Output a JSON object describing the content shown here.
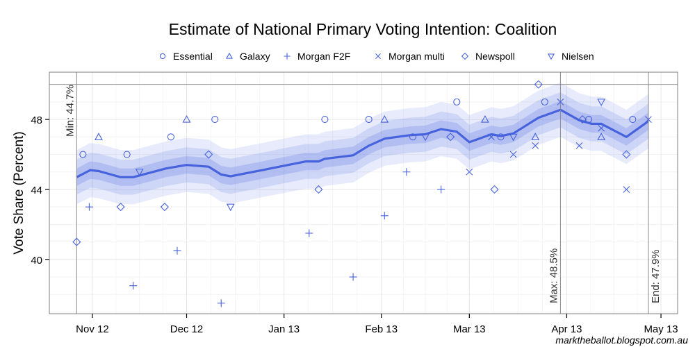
{
  "chart_data": {
    "type": "line",
    "title": "Estimate of National Primary Voting Intention: Coalition",
    "xlabel": "",
    "ylabel": "Vote Share (Percent)",
    "x_units": "days since 1 Nov 2012",
    "xlim": [
      -13.7,
      186.3
    ],
    "ylim": [
      36.9,
      50.7
    ],
    "grid": true,
    "legend_position": "top",
    "x_ticks": [
      {
        "value": 0,
        "label": "Nov 12"
      },
      {
        "value": 30,
        "label": "Dec 12"
      },
      {
        "value": 61,
        "label": "Jan 13"
      },
      {
        "value": 92,
        "label": "Feb 13"
      },
      {
        "value": 120,
        "label": "Mar 13"
      },
      {
        "value": 151,
        "label": "Apr 13"
      },
      {
        "value": 181,
        "label": "May 13"
      }
    ],
    "y_ticks": [
      {
        "value": 40,
        "label": "40"
      },
      {
        "value": 44,
        "label": "44"
      },
      {
        "value": 48,
        "label": "48"
      }
    ],
    "reference_hline": 50,
    "annotations": [
      {
        "x": -5,
        "label": "Min: 44.7%",
        "text_side": "left",
        "text_pos": "top"
      },
      {
        "x": 149,
        "label": "Max: 48.5%",
        "text_side": "left",
        "text_pos": "bottom"
      },
      {
        "x": 177,
        "label": "End: 47.9%",
        "text_side": "right",
        "text_pos": "bottom"
      }
    ],
    "trend": {
      "name": "Aggregate estimate",
      "color": "#4762dd",
      "band_color": "#6a80e6",
      "band_half_widths": [
        0.5,
        1.0,
        1.55
      ],
      "x": [
        -5,
        -0.7,
        2,
        9,
        13,
        23.5,
        30,
        37,
        41,
        44,
        54,
        68,
        72,
        74,
        83,
        88,
        93,
        101,
        106,
        111,
        116,
        120,
        127,
        130,
        134,
        142,
        149,
        155,
        159,
        162,
        170,
        177
      ],
      "y": [
        44.7,
        45.1,
        45.05,
        44.7,
        44.7,
        45.2,
        45.4,
        45.3,
        44.85,
        44.75,
        45.1,
        45.6,
        45.6,
        45.75,
        45.95,
        46.5,
        46.9,
        47.1,
        47.15,
        47.45,
        47.3,
        46.7,
        47.15,
        47.05,
        47.2,
        48.1,
        48.55,
        47.95,
        47.75,
        47.75,
        47.0,
        47.9
      ]
    },
    "series": [
      {
        "name": "Essential",
        "shape": "circle",
        "points": [
          [
            -3,
            46
          ],
          [
            11,
            46
          ],
          [
            25,
            47
          ],
          [
            39,
            48
          ],
          [
            74,
            48
          ],
          [
            88,
            48
          ],
          [
            102,
            47
          ],
          [
            116,
            49
          ],
          [
            130,
            47
          ],
          [
            144,
            49
          ],
          [
            158,
            48
          ],
          [
            172,
            48
          ]
        ]
      },
      {
        "name": "Galaxy",
        "shape": "triangle",
        "points": [
          [
            2,
            47
          ],
          [
            30,
            48
          ],
          [
            93,
            48
          ],
          [
            125,
            48
          ],
          [
            141,
            47
          ],
          [
            162,
            47
          ]
        ]
      },
      {
        "name": "Morgan F2F",
        "shape": "plus",
        "points": [
          [
            -1,
            43
          ],
          [
            13,
            38.5
          ],
          [
            27,
            40.5
          ],
          [
            41,
            37.5
          ],
          [
            69,
            41.5
          ],
          [
            83,
            39
          ],
          [
            93,
            42.5
          ],
          [
            100,
            45
          ],
          [
            111,
            44
          ]
        ]
      },
      {
        "name": "Morgan multi",
        "shape": "cross",
        "points": [
          [
            120,
            45
          ],
          [
            127,
            47
          ],
          [
            134,
            46
          ],
          [
            141,
            46.5
          ],
          [
            149,
            49
          ],
          [
            155,
            46.5
          ],
          [
            162,
            47.5
          ],
          [
            170,
            44
          ],
          [
            177,
            48
          ]
        ]
      },
      {
        "name": "Newspoll",
        "shape": "diamond",
        "points": [
          [
            -5,
            41
          ],
          [
            9,
            43
          ],
          [
            23,
            43
          ],
          [
            37,
            46
          ],
          [
            72,
            44
          ],
          [
            114,
            47
          ],
          [
            128,
            44
          ],
          [
            142,
            50
          ],
          [
            156,
            48
          ],
          [
            170,
            46
          ]
        ]
      },
      {
        "name": "Nielsen",
        "shape": "triangle-down",
        "points": [
          [
            15,
            45
          ],
          [
            44,
            43
          ],
          [
            106,
            47
          ],
          [
            134,
            47
          ],
          [
            162,
            49
          ]
        ]
      }
    ],
    "marker_color": "#4762dd"
  },
  "credit": "marktheballot.blogspot.com.au"
}
